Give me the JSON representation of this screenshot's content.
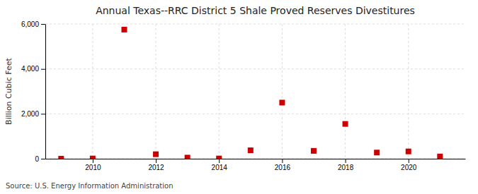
{
  "chart_data": {
    "type": "scatter",
    "title": "Annual Texas--RRC District 5 Shale Proved Reserves Divestitures",
    "ylabel": "Billion Cubic Feet",
    "annotations": [
      "Source: U.S. Energy Information Administration"
    ],
    "x": [
      2009,
      2010,
      2011,
      2012,
      2013,
      2014,
      2015,
      2016,
      2017,
      2018,
      2019,
      2020,
      2021
    ],
    "values": [
      2,
      10,
      5750,
      200,
      50,
      10,
      375,
      2500,
      350,
      1550,
      275,
      325,
      100
    ],
    "color": "#cc0000",
    "marker": "square",
    "xlim": [
      2008.5,
      2021.8
    ],
    "xticks": [
      2010,
      2012,
      2014,
      2016,
      2018,
      2020
    ],
    "ylim": [
      0,
      6001
    ],
    "yticks": [
      0,
      {
        "value": 2000,
        "label": "2,000"
      },
      {
        "value": 4000,
        "label": "4,000"
      },
      {
        "value": 6000,
        "label": "6,000"
      }
    ],
    "grid": true
  }
}
